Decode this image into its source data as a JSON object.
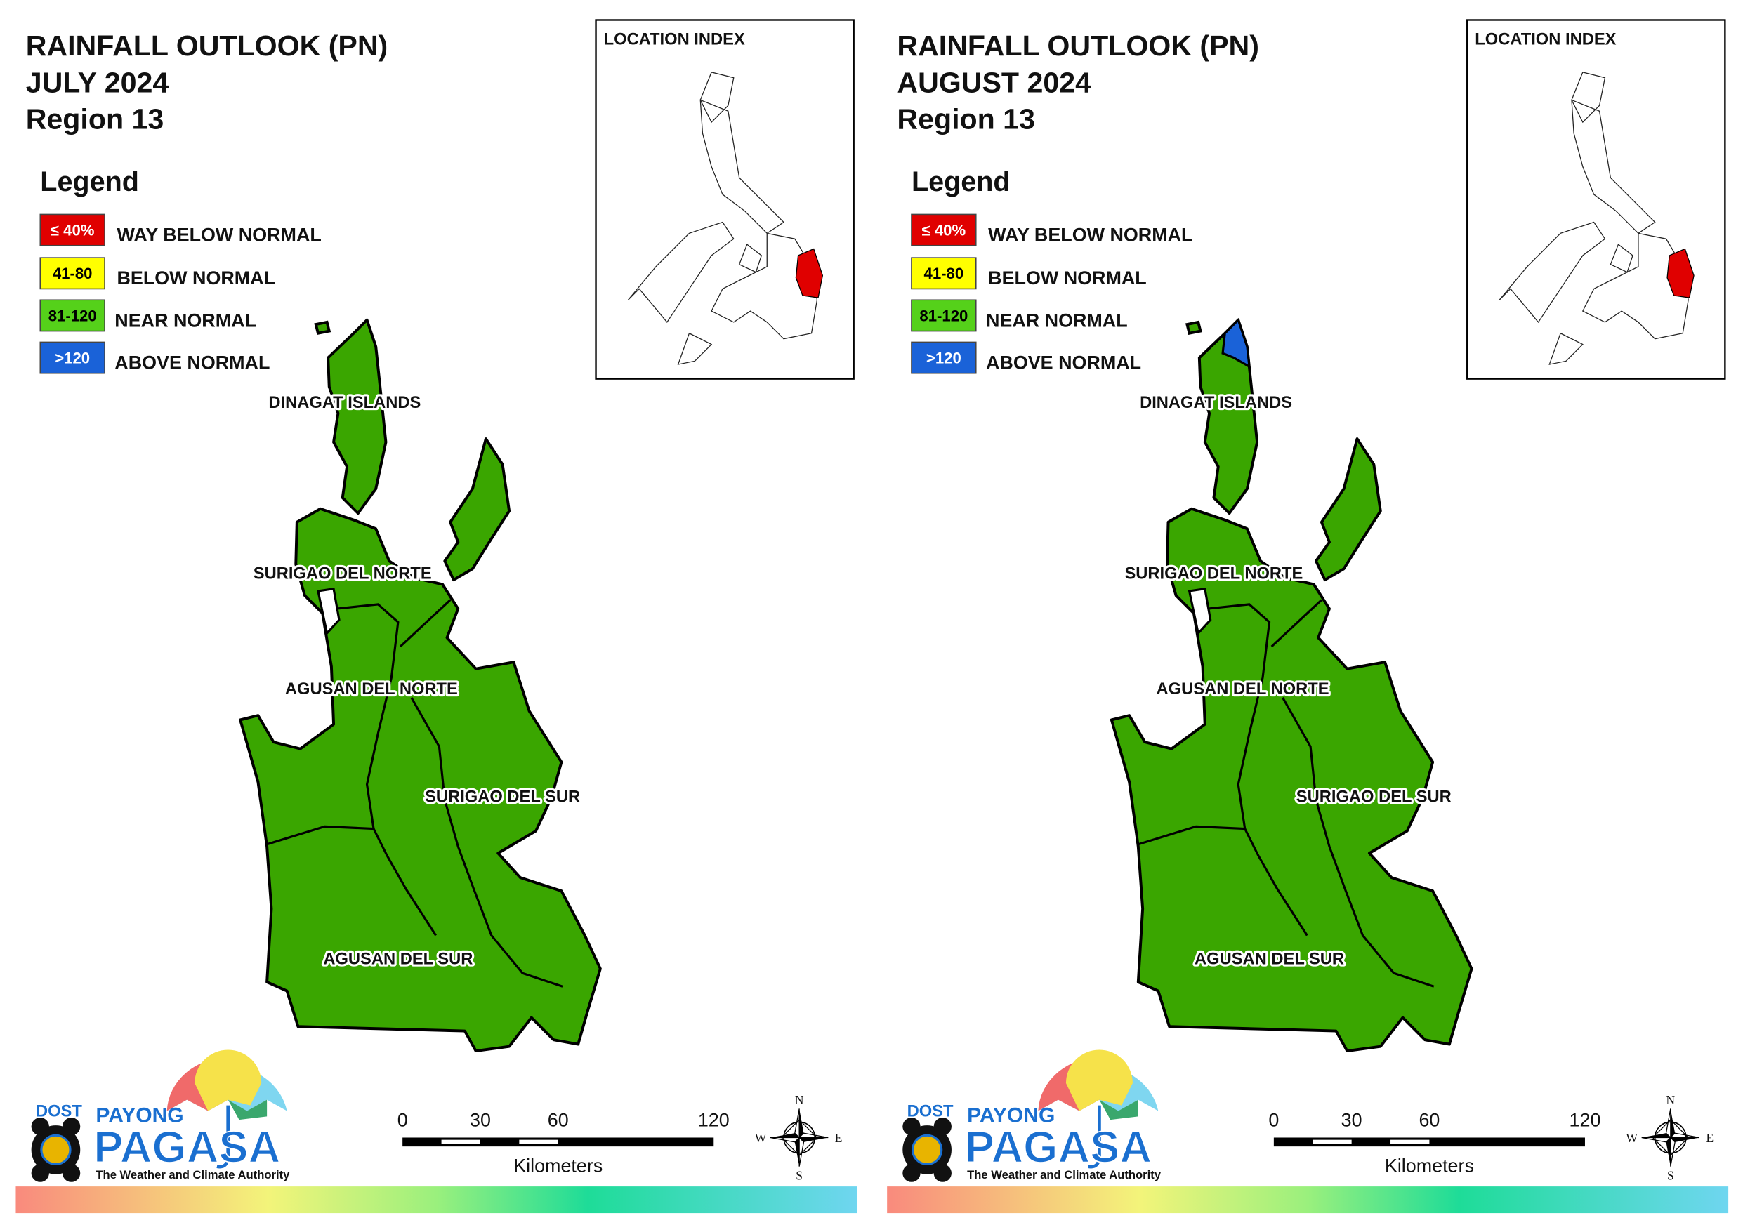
{
  "panels": [
    {
      "title": [
        "RAINFALL OUTLOOK (PN)",
        "JULY 2024",
        "Region 13"
      ],
      "location_index": "LOCATION INDEX",
      "legend": {
        "title": "Legend",
        "items": [
          {
            "key": "≤ 40%",
            "label": "WAY BELOW NORMAL",
            "color": "#e00000"
          },
          {
            "key": "41-80",
            "label": "BELOW NORMAL",
            "color": "#ffff00"
          },
          {
            "key": "81-120",
            "label": "NEAR NORMAL",
            "color": "#55d11a"
          },
          {
            "key": ">120",
            "label": "ABOVE NORMAL",
            "color": "#1a62d8"
          }
        ]
      },
      "provinces": [
        "DINAGAT ISLANDS",
        "SURIGAO DEL NORTE",
        "AGUSAN DEL NORTE",
        "SURIGAO DEL SUR",
        "AGUSAN DEL SUR"
      ],
      "scale_bar": {
        "ticks": [
          0,
          30,
          60,
          120
        ],
        "unit": "Kilometers"
      },
      "compass": {
        "n": "N",
        "e": "E",
        "s": "S",
        "w": "W"
      }
    },
    {
      "title": [
        "RAINFALL OUTLOOK (PN)",
        "AUGUST 2024",
        "Region 13"
      ],
      "location_index": "LOCATION INDEX",
      "legend": {
        "title": "Legend",
        "items": [
          {
            "key": "≤ 40%",
            "label": "WAY BELOW NORMAL",
            "color": "#e00000"
          },
          {
            "key": "41-80",
            "label": "BELOW NORMAL",
            "color": "#ffff00"
          },
          {
            "key": "81-120",
            "label": "NEAR NORMAL",
            "color": "#55d11a"
          },
          {
            "key": ">120",
            "label": "ABOVE NORMAL",
            "color": "#1a62d8"
          }
        ]
      },
      "provinces": [
        "DINAGAT ISLANDS",
        "SURIGAO DEL NORTE",
        "AGUSAN DEL NORTE",
        "SURIGAO DEL SUR",
        "AGUSAN DEL SUR"
      ],
      "scale_bar": {
        "ticks": [
          0,
          30,
          60,
          120
        ],
        "unit": "Kilometers"
      },
      "compass": {
        "n": "N",
        "e": "E",
        "s": "S",
        "w": "W"
      }
    }
  ],
  "logo": {
    "agency": "DOST",
    "brand": "PAYONG",
    "name": "PAGASA",
    "tagline": "The Weather and Climate Authority"
  }
}
